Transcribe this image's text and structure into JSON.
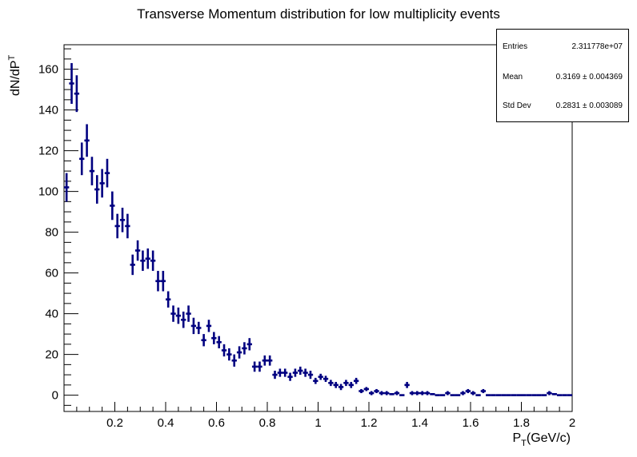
{
  "chart_data": {
    "type": "scatter",
    "style": "histogram-errorbars",
    "title": "Transverse Momentum distribution for low multiplicity events",
    "xlabel_main": "P",
    "xlabel_sub": "T",
    "xlabel_tail": "(GeV/c)",
    "ylabel_main": "dN/dP",
    "ylabel_sub": "T",
    "xlim": [
      0,
      2
    ],
    "ylim": [
      -8,
      172
    ],
    "xticks": [
      "0.2",
      "0.4",
      "0.6",
      "0.8",
      "1",
      "1.2",
      "1.4",
      "1.6",
      "1.8",
      "2"
    ],
    "xtick_values": [
      0.2,
      0.4,
      0.6,
      0.8,
      1.0,
      1.2,
      1.4,
      1.6,
      1.8,
      2.0
    ],
    "yticks": [
      "0",
      "20",
      "40",
      "60",
      "80",
      "100",
      "120",
      "140",
      "160"
    ],
    "ytick_values": [
      0,
      20,
      40,
      60,
      80,
      100,
      120,
      140,
      160
    ],
    "bin_width": 0.02,
    "x": [
      0.01,
      0.03,
      0.05,
      0.07,
      0.09,
      0.11,
      0.13,
      0.15,
      0.17,
      0.19,
      0.21,
      0.23,
      0.25,
      0.27,
      0.29,
      0.31,
      0.33,
      0.35,
      0.37,
      0.39,
      0.41,
      0.43,
      0.45,
      0.47,
      0.49,
      0.51,
      0.53,
      0.55,
      0.57,
      0.59,
      0.61,
      0.63,
      0.65,
      0.67,
      0.69,
      0.71,
      0.73,
      0.75,
      0.77,
      0.79,
      0.81,
      0.83,
      0.85,
      0.87,
      0.89,
      0.91,
      0.93,
      0.95,
      0.97,
      0.99,
      1.01,
      1.03,
      1.05,
      1.07,
      1.09,
      1.11,
      1.13,
      1.15,
      1.17,
      1.19,
      1.21,
      1.23,
      1.25,
      1.27,
      1.29,
      1.31,
      1.33,
      1.35,
      1.37,
      1.39,
      1.41,
      1.43,
      1.45,
      1.47,
      1.49,
      1.51,
      1.53,
      1.55,
      1.57,
      1.59,
      1.61,
      1.63,
      1.65,
      1.67,
      1.69,
      1.71,
      1.73,
      1.75,
      1.77,
      1.79,
      1.81,
      1.83,
      1.85,
      1.87,
      1.89,
      1.91,
      1.93,
      1.95,
      1.97,
      1.99
    ],
    "y": [
      102,
      153,
      148,
      116,
      125,
      110,
      101,
      104,
      109,
      93,
      83,
      86,
      83,
      64,
      71,
      66,
      67,
      66,
      56,
      56,
      47,
      40,
      39,
      37,
      40,
      34,
      33,
      27,
      34,
      28,
      26,
      22,
      20,
      17,
      21,
      23,
      25,
      14,
      14,
      17,
      17,
      10,
      11,
      11,
      9,
      11,
      12,
      11,
      10,
      7,
      9,
      8,
      6,
      5,
      4,
      6,
      5,
      7,
      2,
      3,
      1,
      2,
      1,
      1,
      0.5,
      1,
      0,
      5,
      1,
      1,
      1,
      1,
      0.5,
      0,
      0,
      1,
      0,
      0,
      1,
      2,
      1,
      0,
      2,
      0,
      0,
      0,
      0,
      0,
      0,
      0,
      0,
      0,
      0,
      0,
      0,
      1,
      0.5,
      0,
      0,
      0
    ],
    "yerr": [
      7,
      10,
      9,
      8,
      8,
      7,
      7,
      7,
      7,
      7,
      6,
      6,
      6,
      5,
      5,
      5,
      5,
      5,
      5,
      5,
      4,
      4,
      4,
      4,
      4,
      4,
      3,
      3,
      3,
      3,
      3,
      3,
      3,
      3,
      3,
      3,
      3,
      2.5,
      2.5,
      2.5,
      2.5,
      2,
      2,
      2,
      2,
      2,
      2,
      2,
      2,
      1.5,
      1.5,
      1.5,
      1.5,
      1.5,
      1.5,
      1.5,
      1.5,
      1.5,
      1,
      1,
      1,
      1,
      1,
      1,
      0.5,
      1,
      0,
      1.5,
      1,
      1,
      1,
      1,
      0.5,
      0,
      0,
      1,
      0,
      0,
      1,
      1,
      1,
      0,
      1,
      0,
      0,
      0,
      0,
      0,
      0,
      0,
      0,
      0,
      0,
      0,
      0,
      1,
      0.5,
      0,
      0,
      0
    ],
    "marker_color": "#000080"
  },
  "stats": {
    "entries_label": "Entries",
    "entries_value": "2.311778e+07",
    "mean_label": "Mean",
    "mean_value": "0.3169 ± 0.004369",
    "std_label": "Std Dev",
    "std_value": "0.2831 ± 0.003089"
  }
}
